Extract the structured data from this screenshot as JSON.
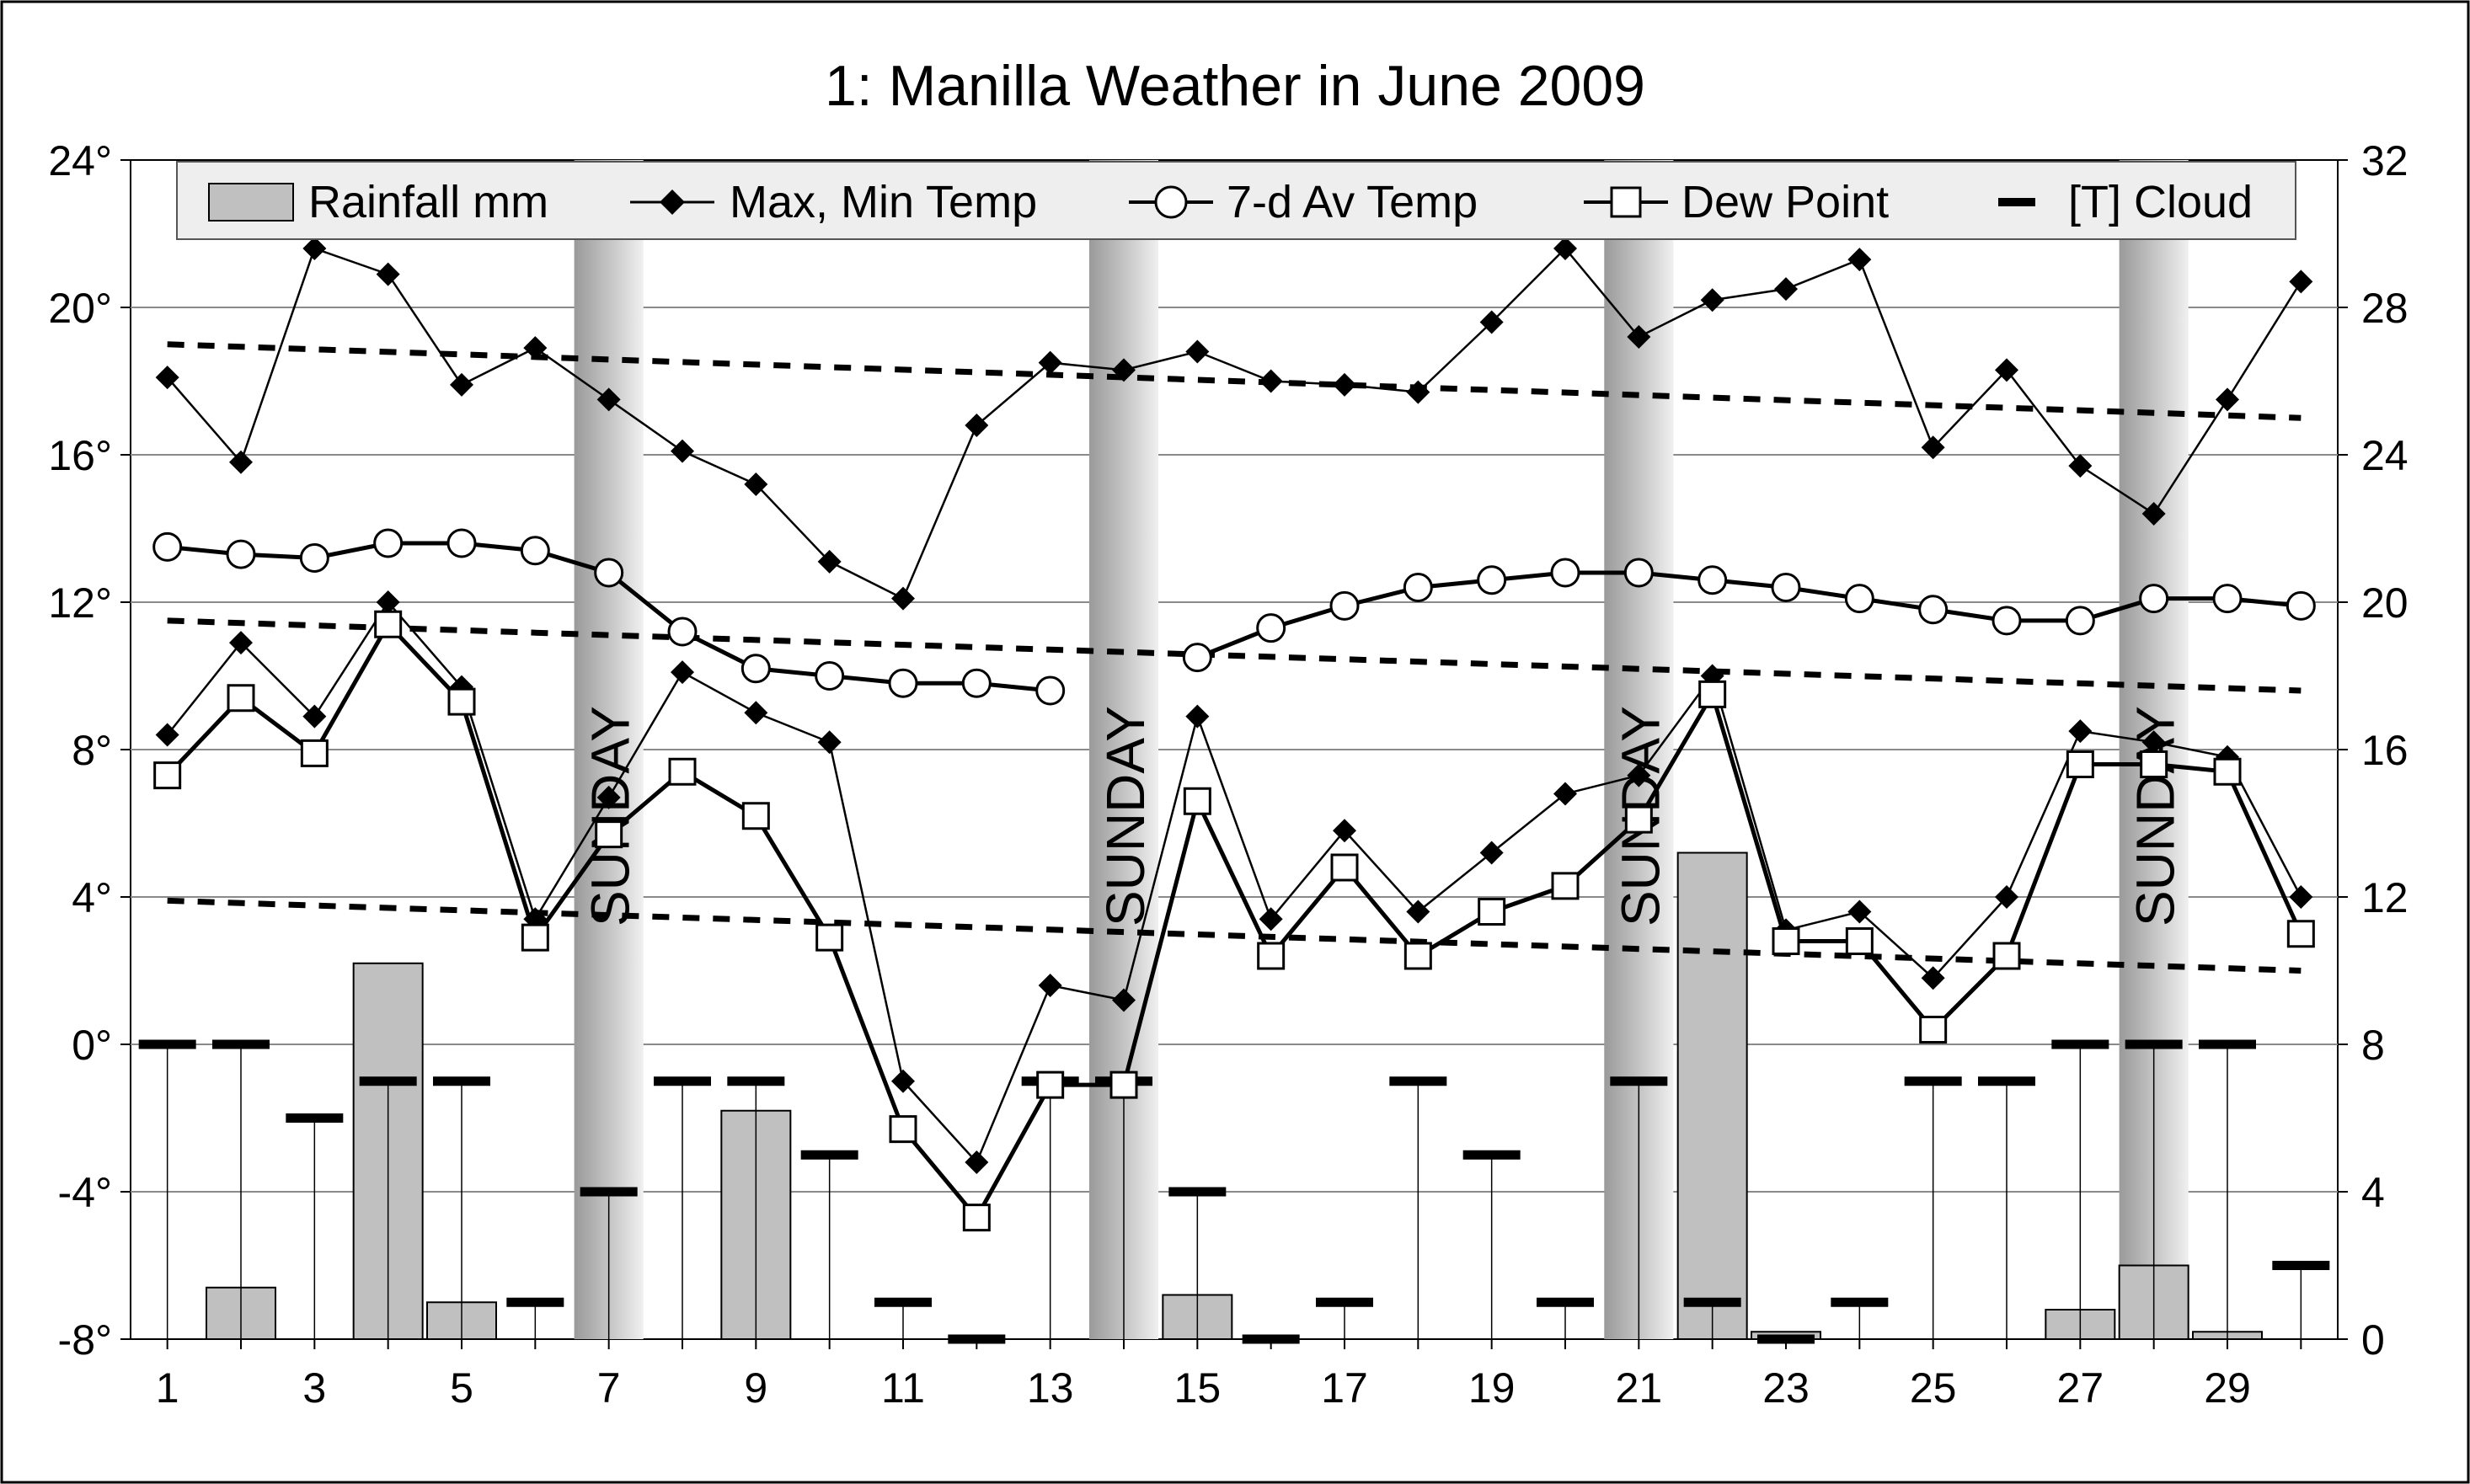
{
  "chart_data": {
    "type": "combo",
    "title": "1: Manilla Weather in June 2009",
    "xlabel": "",
    "ylabel": "",
    "x": [
      1,
      2,
      3,
      4,
      5,
      6,
      7,
      8,
      9,
      10,
      11,
      12,
      13,
      14,
      15,
      16,
      17,
      18,
      19,
      20,
      21,
      22,
      23,
      24,
      25,
      26,
      27,
      28,
      29,
      30
    ],
    "x_ticks": [
      "1",
      "3",
      "5",
      "7",
      "9",
      "11",
      "13",
      "15",
      "17",
      "19",
      "21",
      "23",
      "25",
      "27",
      "29"
    ],
    "xlim": [
      0.5,
      30.5
    ],
    "y_left": {
      "range": [
        -8,
        24
      ],
      "ticks": [
        "24°",
        "20°",
        "16°",
        "12°",
        "8°",
        "4°",
        "0°",
        "-4°",
        "-8°"
      ]
    },
    "y_right": {
      "range": [
        0,
        32
      ],
      "ticks": [
        "32",
        "28",
        "24",
        "20",
        "16",
        "12",
        "8",
        "4",
        "0"
      ]
    },
    "grid": true,
    "legend_position": "top",
    "legend": [
      "Rainfall mm",
      "Max, Min Temp",
      "7-d Av Temp",
      "Dew Point",
      "[T] Cloud"
    ],
    "sunday_label": "SUNDAY",
    "sundays": [
      7,
      14,
      21,
      28
    ],
    "series": [
      {
        "name": "Rainfall mm",
        "axis": "right",
        "style": "bar",
        "color": "#c0c0c0",
        "values": [
          0,
          1.4,
          0,
          10.2,
          1,
          0,
          0,
          0,
          6.2,
          0,
          0,
          0,
          0,
          0,
          1.2,
          0,
          0,
          0,
          0,
          0,
          0,
          13.2,
          0.2,
          0,
          0,
          0,
          0.8,
          2,
          0.2,
          0
        ]
      },
      {
        "name": "Max Temp",
        "axis": "left",
        "style": "diamond-line",
        "values": [
          18.1,
          15.8,
          21.6,
          20.9,
          17.9,
          18.9,
          17.5,
          16.1,
          15.2,
          13.1,
          12.1,
          16.8,
          18.5,
          18.3,
          18.8,
          18,
          17.9,
          17.7,
          19.6,
          21.6,
          19.2,
          20.2,
          20.5,
          21.3,
          16.2,
          18.3,
          15.7,
          14.4,
          17.5,
          20.7
        ]
      },
      {
        "name": "Min Temp",
        "axis": "left",
        "style": "diamond-line",
        "values": [
          8.4,
          10.9,
          8.9,
          12,
          9.7,
          3.4,
          6.7,
          10.1,
          9,
          8.2,
          -1,
          -3.2,
          1.6,
          1.2,
          8.9,
          3.4,
          5.8,
          3.6,
          5.2,
          6.8,
          7.3,
          10,
          3.1,
          3.6,
          1.8,
          4,
          8.5,
          8.2,
          7.8,
          4
        ]
      },
      {
        "name": "7-d Av Temp",
        "axis": "left",
        "style": "circle-line",
        "values": [
          13.5,
          13.3,
          13.2,
          13.6,
          13.6,
          13.4,
          12.8,
          11.2,
          10.2,
          10,
          9.8,
          9.8,
          9.6,
          null,
          10.5,
          11.3,
          11.9,
          12.4,
          12.6,
          12.8,
          12.8,
          12.6,
          12.4,
          12.1,
          11.8,
          11.5,
          11.5,
          12.1,
          12.1,
          11.9
        ]
      },
      {
        "name": "Dew Point",
        "axis": "left",
        "style": "square-line",
        "values": [
          7.3,
          9.4,
          7.9,
          11.4,
          9.3,
          2.9,
          5.7,
          7.4,
          6.2,
          2.9,
          -2.3,
          -4.7,
          -1.1,
          -1.1,
          6.6,
          2.4,
          4.8,
          2.4,
          3.6,
          4.3,
          6.1,
          9.5,
          2.8,
          2.8,
          0.4,
          2.4,
          7.6,
          7.6,
          7.4,
          3
        ]
      },
      {
        "name": "[T] Cloud",
        "axis": "right",
        "style": "dash-stem",
        "values": [
          8,
          8,
          6,
          7,
          7,
          1,
          4,
          7,
          7,
          5,
          1,
          0,
          7,
          7,
          4,
          0,
          1,
          7,
          5,
          1,
          7,
          1,
          0,
          1,
          7,
          7,
          8,
          8,
          8,
          2
        ]
      }
    ],
    "trend_lines_left": [
      {
        "from": [
          1,
          19.0
        ],
        "to": [
          30,
          17.0
        ]
      },
      {
        "from": [
          1,
          11.5
        ],
        "to": [
          30,
          9.6
        ]
      },
      {
        "from": [
          1,
          3.9
        ],
        "to": [
          30,
          2.0
        ]
      }
    ]
  }
}
